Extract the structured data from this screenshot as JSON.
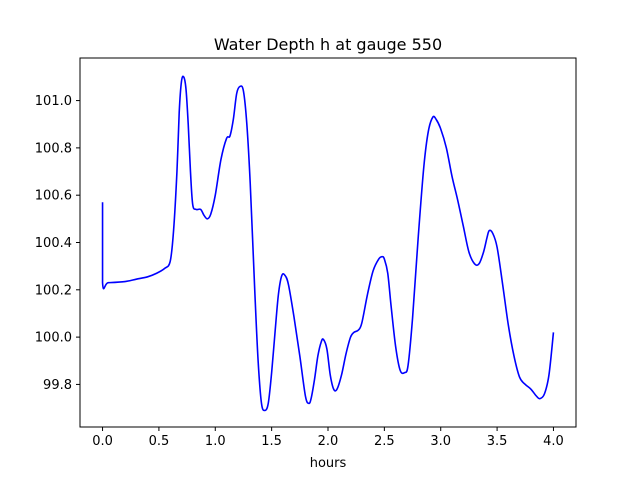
{
  "chart_data": {
    "type": "line",
    "title": "Water Depth h at gauge 550",
    "xlabel": "hours",
    "ylabel": "",
    "xlim": [
      -0.2,
      4.2
    ],
    "ylim": [
      99.62,
      101.18
    ],
    "grid": false,
    "legend": "none",
    "x_ticks": [
      0.0,
      0.5,
      1.0,
      1.5,
      2.0,
      2.5,
      3.0,
      3.5,
      4.0
    ],
    "x_tick_labels": [
      "0.0",
      "0.5",
      "1.0",
      "1.5",
      "2.0",
      "2.5",
      "3.0",
      "3.5",
      "4.0"
    ],
    "y_ticks": [
      99.8,
      100.0,
      100.2,
      100.4,
      100.6,
      100.8,
      101.0
    ],
    "y_tick_labels": [
      "99.8",
      "100.0",
      "100.2",
      "100.4",
      "100.6",
      "100.8",
      "101.0"
    ],
    "series": [
      {
        "color": "#0000ff",
        "x": [
          0.0,
          0.0,
          0.05,
          0.2,
          0.3,
          0.4,
          0.48,
          0.55,
          0.6,
          0.63,
          0.66,
          0.68,
          0.7,
          0.72,
          0.74,
          0.76,
          0.78,
          0.8,
          0.83,
          0.87,
          0.9,
          0.93,
          0.96,
          1.0,
          1.05,
          1.1,
          1.13,
          1.16,
          1.19,
          1.22,
          1.25,
          1.28,
          1.31,
          1.35,
          1.38,
          1.41,
          1.44,
          1.47,
          1.5,
          1.53,
          1.56,
          1.59,
          1.62,
          1.65,
          1.7,
          1.75,
          1.8,
          1.83,
          1.85,
          1.88,
          1.91,
          1.94,
          1.96,
          1.99,
          2.02,
          2.05,
          2.08,
          2.12,
          2.16,
          2.2,
          2.23,
          2.27,
          2.3,
          2.35,
          2.4,
          2.45,
          2.48,
          2.5,
          2.53,
          2.56,
          2.6,
          2.64,
          2.68,
          2.71,
          2.75,
          2.8,
          2.85,
          2.89,
          2.93,
          2.96,
          3.0,
          3.05,
          3.1,
          3.15,
          3.2,
          3.25,
          3.3,
          3.34,
          3.38,
          3.41,
          3.43,
          3.46,
          3.5,
          3.55,
          3.6,
          3.65,
          3.7,
          3.75,
          3.8,
          3.85,
          3.88,
          3.92,
          3.96,
          4.0
        ],
        "values": [
          100.57,
          100.23,
          100.23,
          100.235,
          100.245,
          100.255,
          100.27,
          100.29,
          100.32,
          100.45,
          100.7,
          100.95,
          101.08,
          101.1,
          101.05,
          100.9,
          100.7,
          100.56,
          100.54,
          100.54,
          100.515,
          100.5,
          100.52,
          100.6,
          100.75,
          100.84,
          100.85,
          100.92,
          101.03,
          101.06,
          101.04,
          100.9,
          100.65,
          100.2,
          99.9,
          99.72,
          99.69,
          99.72,
          99.85,
          100.02,
          100.18,
          100.26,
          100.26,
          100.22,
          100.08,
          99.92,
          99.75,
          99.72,
          99.74,
          99.82,
          99.92,
          99.98,
          99.99,
          99.95,
          99.84,
          99.78,
          99.78,
          99.84,
          99.93,
          100.0,
          100.02,
          100.03,
          100.06,
          100.18,
          100.28,
          100.33,
          100.34,
          100.33,
          100.27,
          100.13,
          99.96,
          99.86,
          99.85,
          99.88,
          100.08,
          100.42,
          100.72,
          100.87,
          100.93,
          100.92,
          100.88,
          100.8,
          100.68,
          100.58,
          100.47,
          100.36,
          100.31,
          100.31,
          100.36,
          100.42,
          100.45,
          100.44,
          100.38,
          100.22,
          100.05,
          99.92,
          99.83,
          99.8,
          99.78,
          99.75,
          99.74,
          99.76,
          99.84,
          100.02
        ]
      }
    ]
  }
}
